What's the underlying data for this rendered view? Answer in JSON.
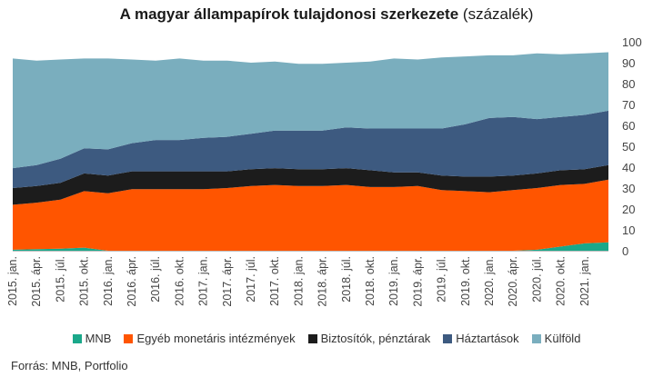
{
  "chart_data": {
    "type": "area",
    "stacked": true,
    "title": "A magyar állampapírok tulajdonosi szerkezete",
    "subtitle": "(százalék)",
    "ylim": [
      0,
      100
    ],
    "yticks": [
      0,
      10,
      20,
      30,
      40,
      50,
      60,
      70,
      80,
      90,
      100
    ],
    "x": [
      "2015. jan.",
      "2015. ápr.",
      "2015. júl.",
      "2015. okt.",
      "2016. jan.",
      "2016. ápr.",
      "2016. júl.",
      "2016. okt.",
      "2017. jan.",
      "2017. ápr.",
      "2017. júl.",
      "2017. okt.",
      "2018. jan.",
      "2018. ápr.",
      "2018. júl.",
      "2018. okt.",
      "2019. jan.",
      "2019. ápr.",
      "2019. júl.",
      "2019. okt.",
      "2020. jan.",
      "2020. ápr.",
      "2020. júl.",
      "2020. okt.",
      "2021. jan.",
      "2021. márc."
    ],
    "xtick_labels": [
      "2015. jan.",
      "2015. ápr.",
      "2015. júl.",
      "2015. okt.",
      "2016. jan.",
      "2016. ápr.",
      "2016. júl.",
      "2016. okt.",
      "2017. jan.",
      "2017. ápr.",
      "2017. júl.",
      "2017. okt.",
      "2018. jan.",
      "2018. ápr.",
      "2018. júl.",
      "2018. okt.",
      "2019. jan.",
      "2019. ápr.",
      "2019. júl.",
      "2019. okt.",
      "2020. jan.",
      "2020. ápr.",
      "2020. júl.",
      "2020. okt.",
      "2021. jan."
    ],
    "series": [
      {
        "name": "MNB",
        "color": "#1aa88a",
        "values": [
          0.5,
          0.8,
          1.0,
          1.5,
          0,
          0,
          0,
          0,
          0,
          0,
          0,
          0,
          0,
          0,
          0,
          0,
          0,
          0,
          0,
          0,
          0,
          0,
          0.5,
          2.0,
          3.5,
          4.0
        ]
      },
      {
        "name": "Egyéb monetáris intézmények",
        "color": "#ff5500",
        "values": [
          21.5,
          22.2,
          23.5,
          27.0,
          27.5,
          29.5,
          29.5,
          29.5,
          29.5,
          30.0,
          31.0,
          31.5,
          31.0,
          31.0,
          31.5,
          30.5,
          30.5,
          31.0,
          29.0,
          28.5,
          28.0,
          29.0,
          29.5,
          29.5,
          28.5,
          30.0
        ]
      },
      {
        "name": "Biztosítók, pénztárak",
        "color": "#1c1c1c",
        "values": [
          8.0,
          8.0,
          8.0,
          8.5,
          8.5,
          8.5,
          8.5,
          8.5,
          8.5,
          8.0,
          8.0,
          8.0,
          8.0,
          8.0,
          8.0,
          8.0,
          7.0,
          6.5,
          7.0,
          7.0,
          7.5,
          7.0,
          7.0,
          7.0,
          7.0,
          7.0
        ]
      },
      {
        "name": "Háztartások",
        "color": "#3d5a80",
        "values": [
          9.5,
          10.0,
          11.5,
          12.0,
          12.5,
          13.5,
          15.0,
          15.0,
          16.0,
          16.5,
          17.0,
          18.0,
          18.5,
          18.5,
          19.5,
          20.0,
          21.0,
          21.0,
          22.5,
          25.0,
          28.0,
          28.0,
          26.0,
          25.5,
          26.0,
          26.0
        ]
      },
      {
        "name": "Külföld",
        "color": "#7aaebe",
        "values": [
          52.5,
          50.0,
          47.5,
          43.0,
          43.5,
          40.0,
          38.0,
          39.0,
          37.0,
          36.5,
          34.0,
          33.0,
          32.0,
          32.0,
          31.0,
          32.0,
          33.5,
          33.0,
          34.0,
          32.5,
          30.0,
          29.5,
          31.5,
          30.0,
          29.5,
          28.0
        ]
      }
    ],
    "legend_position": "bottom",
    "grid": false,
    "source": "Forrás: MNB, Portfolio"
  }
}
